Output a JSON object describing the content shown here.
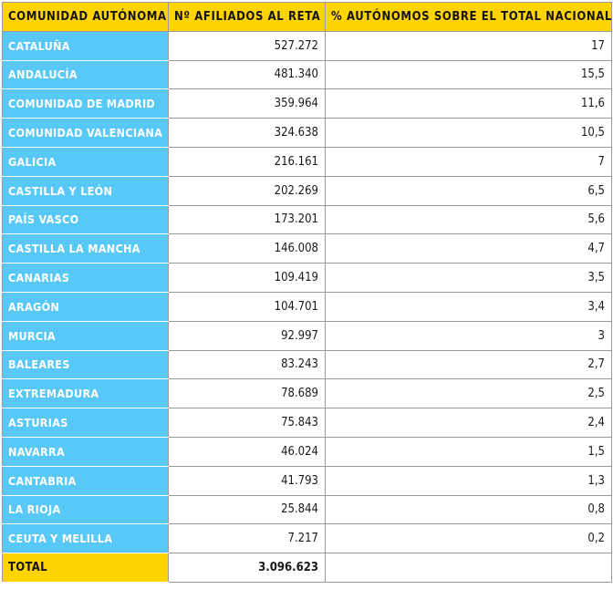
{
  "headers": {
    "region": "Comunidad Autónoma",
    "affiliates": "Nº afiliados al RETA",
    "share": "% autónomos sobre el total nacional"
  },
  "rows": [
    {
      "region": "Cataluña",
      "affiliates": "527.272",
      "share": "17"
    },
    {
      "region": "Andalucía",
      "affiliates": "481.340",
      "share": "15,5"
    },
    {
      "region": "Comunidad de Madrid",
      "affiliates": "359.964",
      "share": "11,6"
    },
    {
      "region": "Comunidad Valenciana",
      "affiliates": "324.638",
      "share": "10,5"
    },
    {
      "region": "Galicia",
      "affiliates": "216.161",
      "share": "7"
    },
    {
      "region": "Castilla y León",
      "affiliates": "202.269",
      "share": "6,5"
    },
    {
      "region": "País Vasco",
      "affiliates": "173.201",
      "share": "5,6"
    },
    {
      "region": "Castilla La Mancha",
      "affiliates": "146.008",
      "share": "4,7"
    },
    {
      "region": "Canarias",
      "affiliates": "109.419",
      "share": "3,5"
    },
    {
      "region": "Aragón",
      "affiliates": "104.701",
      "share": "3,4"
    },
    {
      "region": "Murcia",
      "affiliates": "92.997",
      "share": "3"
    },
    {
      "region": "Baleares",
      "affiliates": "83.243",
      "share": "2,7"
    },
    {
      "region": "Extremadura",
      "affiliates": "78.689",
      "share": "2,5"
    },
    {
      "region": "Asturias",
      "affiliates": "75.843",
      "share": "2,4"
    },
    {
      "region": "Navarra",
      "affiliates": "46.024",
      "share": "1,5"
    },
    {
      "region": "Cantabria",
      "affiliates": "41.793",
      "share": "1,3"
    },
    {
      "region": "La Rioja",
      "affiliates": "25.844",
      "share": "0,8"
    },
    {
      "region": "Ceuta y Melilla",
      "affiliates": "7.217",
      "share": "0,2"
    }
  ],
  "total": {
    "label": "Total",
    "affiliates": "3.096.623",
    "share": ""
  },
  "colors": {
    "header_bg": "#ffd400",
    "region_bg": "#58c8f6",
    "grid": "#9a9a9a"
  }
}
